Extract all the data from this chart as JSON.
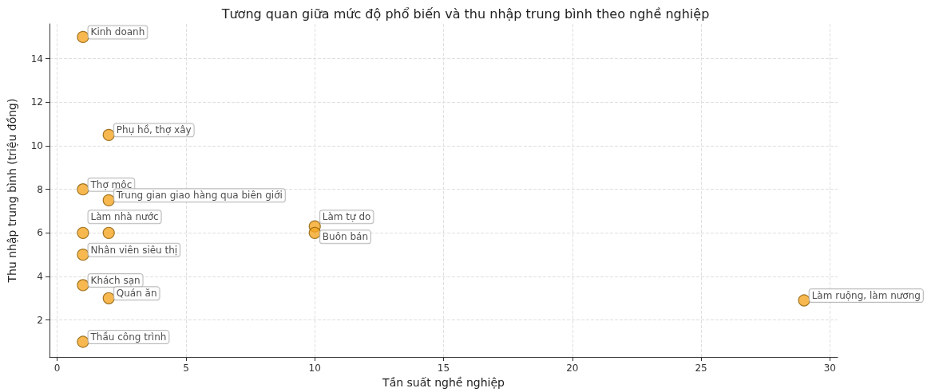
{
  "chart_data": {
    "type": "scatter",
    "title": "Tương quan giữa mức độ phổ biến và thu nhập trung bình theo nghề nghiệp",
    "xlabel": "Tần suất nghề nghiệp",
    "ylabel": "Thu nhập trung bình (triệu đồng)",
    "x": [
      1,
      2,
      1,
      2,
      1,
      2,
      1,
      1,
      2,
      1,
      10,
      10,
      29
    ],
    "values": [
      15,
      10.5,
      8,
      7.5,
      6,
      6,
      5,
      3.6,
      3,
      1,
      6.3,
      6,
      2.9
    ],
    "value_labels": [
      "Kinh doanh",
      "Phụ hồ, thợ xây",
      "Thợ mộc",
      "Trung gian giao hàng qua biên giới",
      "Làm nhà nước",
      null,
      "Nhân viên siêu thị",
      "Khách sạn",
      "Quán ăn",
      "Thầu công trình",
      "Làm tự do",
      "Buôn bán",
      "Làm ruộng, làm nương"
    ],
    "color": "#f5a623",
    "xlim": [
      -0.3,
      30.3
    ],
    "xticks": [
      0,
      5,
      10,
      15,
      20,
      25,
      30
    ],
    "ylim": [
      0.3,
      15.6
    ],
    "yticks": [
      2,
      4,
      6,
      8,
      10,
      12,
      14
    ],
    "grid": true,
    "marker": "circle"
  }
}
